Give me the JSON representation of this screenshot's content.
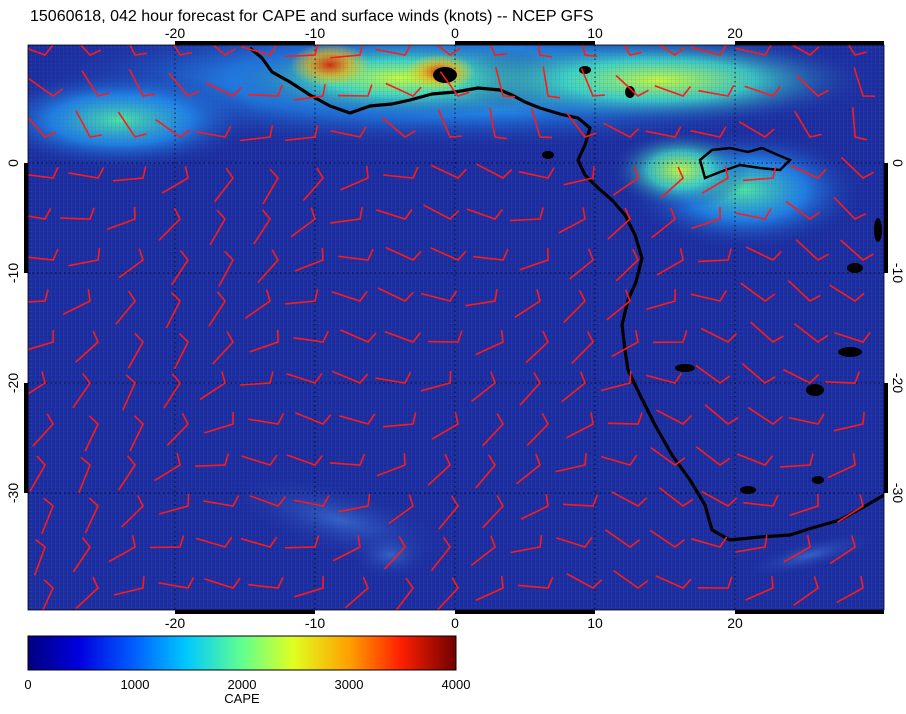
{
  "title": "15060618, 042 hour forecast for CAPE and surface winds (knots) -- NCEP GFS",
  "map": {
    "lon_ticks": [
      "-20",
      "-10",
      "0",
      "10",
      "20"
    ],
    "lat_ticks": [
      "0",
      "-10",
      "-20",
      "-30"
    ],
    "extent": {
      "lon": [
        -30,
        30
      ],
      "lat": [
        -40,
        10
      ]
    }
  },
  "colorbar": {
    "label": "CAPE",
    "ticks": [
      "0",
      "1000",
      "2000",
      "3000",
      "4000"
    ],
    "range": [
      0,
      4000
    ]
  },
  "colors": {
    "ocean_low_cape": "#1b2d9e",
    "wind_barb": "#ff1a1a",
    "coastline": "#000000"
  }
}
